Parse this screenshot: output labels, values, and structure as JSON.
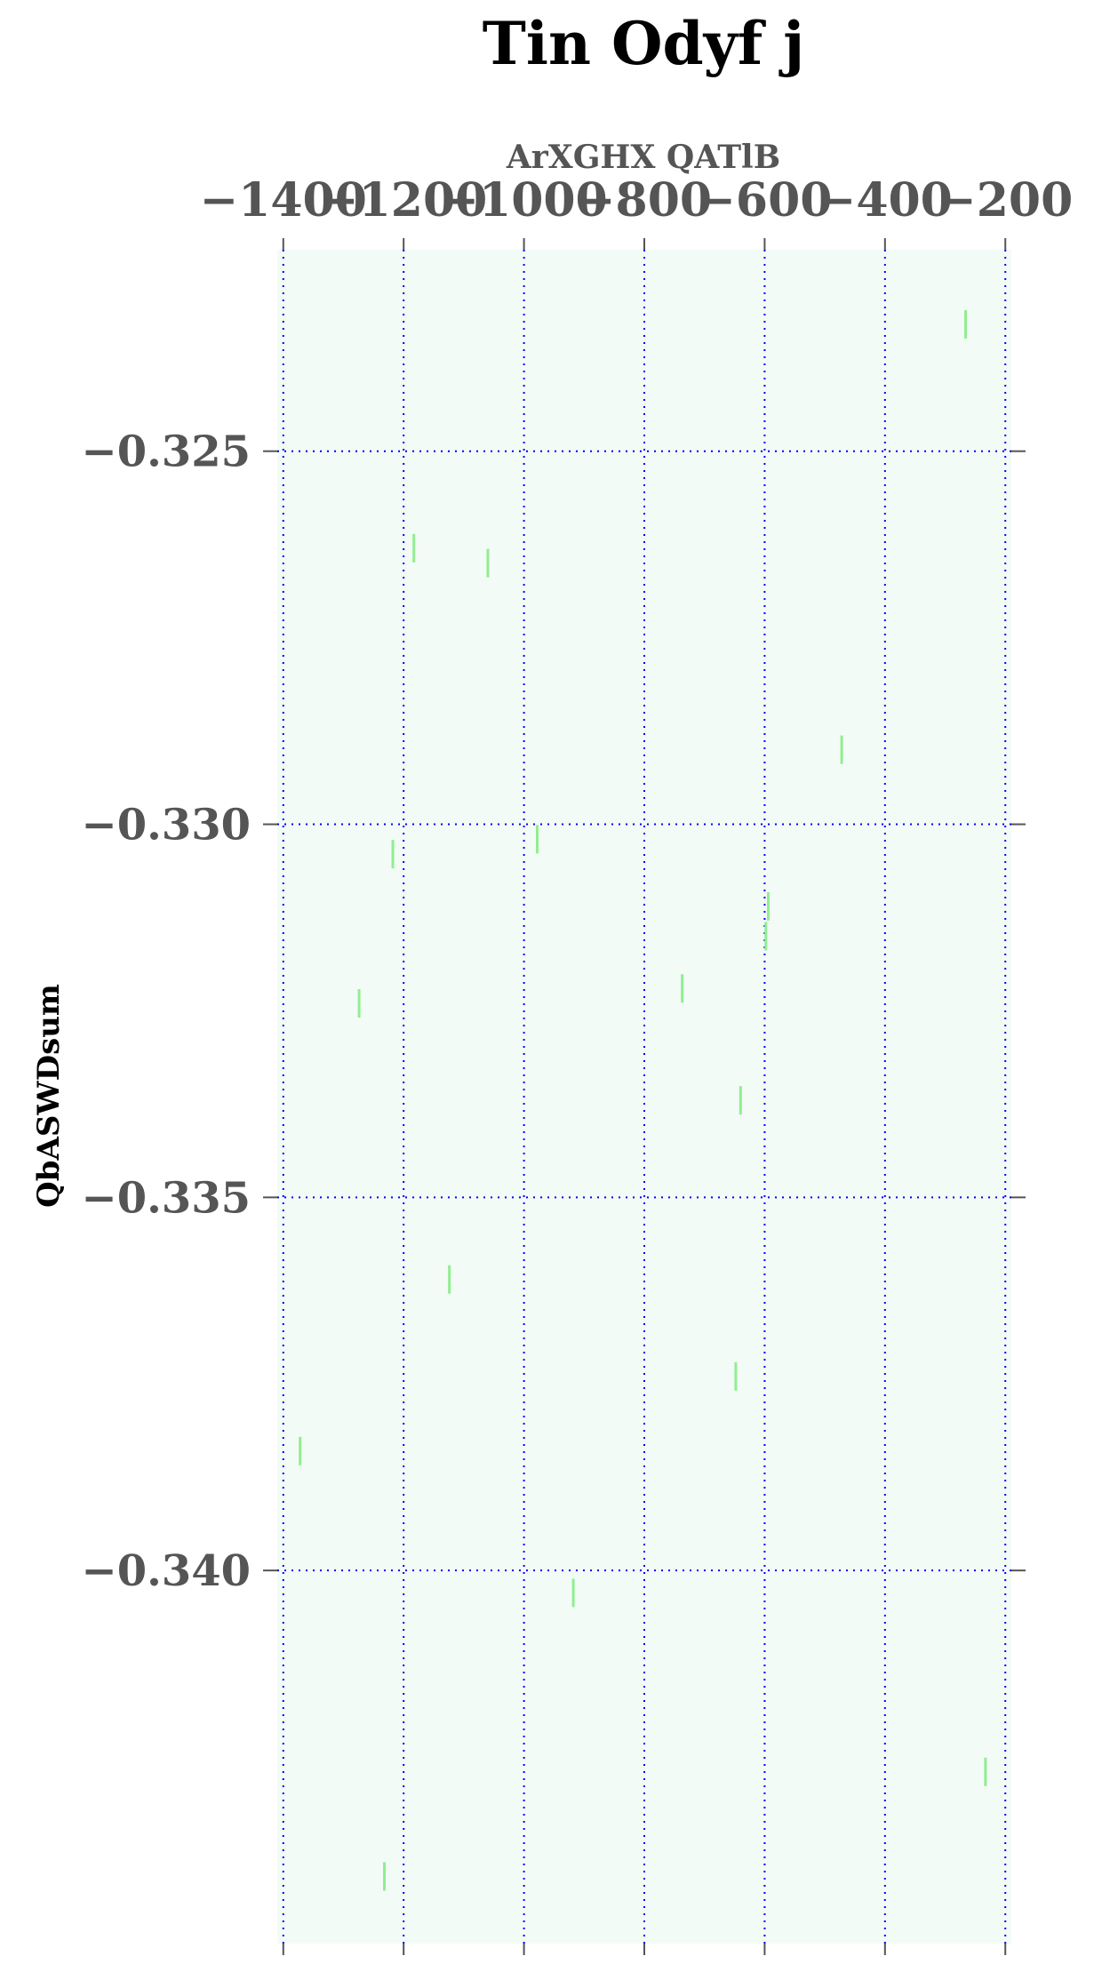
{
  "chart_data": {
    "type": "scatter",
    "title": "Tin Odyf j",
    "xlabel": "ArXGHX QATlB",
    "ylabel": "QbASWDsum",
    "x_axis_position": "top",
    "xlim": [
      -1410,
      -190
    ],
    "ylim": [
      -0.345,
      -0.3223
    ],
    "y_inverted": true,
    "x_ticks": [
      -1400,
      -1200,
      -1000,
      -800,
      -600,
      -400,
      -200
    ],
    "x_tick_labels": [
      "−1400",
      "−1200",
      "−1000",
      "−800",
      "−600",
      "−400",
      "−200"
    ],
    "y_ticks": [
      -0.325,
      -0.33,
      -0.335,
      -0.34
    ],
    "y_tick_labels": [
      "−0.325",
      "−0.330",
      "−0.335",
      "−0.340"
    ],
    "grid": true,
    "marker": "vertical-line",
    "colors": {
      "marker": "#90ee90",
      "grid": "#0000ff",
      "plot_background": "#f3fbf6",
      "tick": "#555555"
    },
    "points": [
      {
        "x": -266,
        "y": -0.3233
      },
      {
        "x": -1183,
        "y": -0.3263
      },
      {
        "x": -1060,
        "y": -0.3265
      },
      {
        "x": -472,
        "y": -0.329
      },
      {
        "x": -1218,
        "y": -0.3304
      },
      {
        "x": -978,
        "y": -0.3302
      },
      {
        "x": -594,
        "y": -0.3311
      },
      {
        "x": -598,
        "y": -0.3315
      },
      {
        "x": -737,
        "y": -0.3322
      },
      {
        "x": -1274,
        "y": -0.3324
      },
      {
        "x": -640,
        "y": -0.3337
      },
      {
        "x": -1124,
        "y": -0.3361
      },
      {
        "x": -648,
        "y": -0.3374
      },
      {
        "x": -1372,
        "y": -0.3384
      },
      {
        "x": -918,
        "y": -0.3403
      },
      {
        "x": -233,
        "y": -0.3427
      },
      {
        "x": -1232,
        "y": -0.3441
      }
    ]
  }
}
